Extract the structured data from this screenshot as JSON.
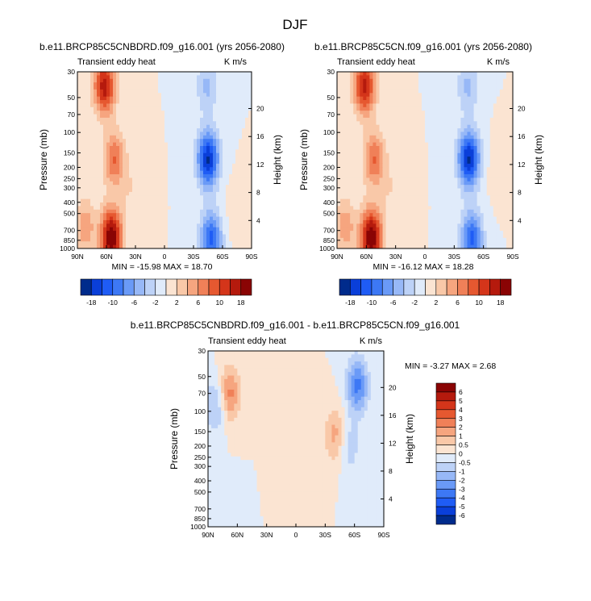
{
  "page_title": "DJF",
  "colorscale_top": {
    "labels": [
      "-18",
      "-10",
      "-6",
      "-2",
      "2",
      "6",
      "10",
      "18"
    ],
    "colors": [
      "#002b8c",
      "#0a3fd9",
      "#1f5cf5",
      "#3d78f5",
      "#6a9af7",
      "#97b8f7",
      "#bdd2f7",
      "#e0ebfa",
      "#fbe4d2",
      "#f9c8a8",
      "#f6a57f",
      "#f08058",
      "#e65830",
      "#d4351a",
      "#b51a0d",
      "#8a0404"
    ]
  },
  "colorscale_diff": {
    "labels": [
      "6",
      "5",
      "4",
      "3",
      "2",
      "1",
      "0.5",
      "0",
      "-0.5",
      "-1",
      "-2",
      "-3",
      "-4",
      "-5",
      "-6"
    ],
    "colors": [
      "#8a0404",
      "#b51a0d",
      "#d4351a",
      "#e65830",
      "#f08058",
      "#f6a57f",
      "#f9c8a8",
      "#fbe4d2",
      "#e0ebfa",
      "#bdd2f7",
      "#97b8f7",
      "#6a9af7",
      "#3d78f5",
      "#1f5cf5",
      "#0a3fd9",
      "#002b8c"
    ]
  },
  "chart_data": [
    {
      "type": "heatmap",
      "title": "b.e11.BRCP85C5CNBDRD.f09_g16.001 (yrs 2056-2080)",
      "left_string": "Transient eddy heat",
      "right_string": "K m/s",
      "ylabel": "Pressure (mb)",
      "ylabel_right": "Height (km)",
      "xticks": [
        "90N",
        "60N",
        "30N",
        "0",
        "30S",
        "60S",
        "90S"
      ],
      "yticks_pressure": [
        30,
        50,
        70,
        100,
        150,
        200,
        250,
        300,
        400,
        500,
        700,
        850,
        1000
      ],
      "yticks_height": [
        20,
        16,
        12,
        8,
        4
      ],
      "stats": "MIN = -15.98  MAX = 18.70",
      "scale": 18,
      "features": [
        {
          "lat": 62,
          "p": 40,
          "amp": 15
        },
        {
          "lat": 55,
          "p": 800,
          "amp": 18.7
        },
        {
          "lat": 52,
          "p": 170,
          "amp": 9
        },
        {
          "lat": 82,
          "p": 650,
          "amp": 6
        },
        {
          "lat": 35,
          "p": 300,
          "amp": 2
        },
        {
          "lat": -45,
          "p": 170,
          "amp": -16
        },
        {
          "lat": -48,
          "p": 830,
          "amp": -12
        },
        {
          "lat": -44,
          "p": 40,
          "amp": -5
        },
        {
          "lat": -75,
          "p": 500,
          "amp": 1.5
        }
      ]
    },
    {
      "type": "heatmap",
      "title": "b.e11.BRCP85C5CN.f09_g16.001 (yrs 2056-2080)",
      "left_string": "Transient eddy heat",
      "right_string": "K m/s",
      "ylabel": "Pressure (mb)",
      "ylabel_right": "Height (km)",
      "xticks": [
        "90N",
        "60N",
        "30N",
        "0",
        "30S",
        "60S",
        "90S"
      ],
      "yticks_pressure": [
        30,
        50,
        70,
        100,
        150,
        200,
        250,
        300,
        400,
        500,
        700,
        850,
        1000
      ],
      "yticks_height": [
        20,
        16,
        12,
        8,
        4
      ],
      "stats": "MIN = -16.12  MAX = 18.28",
      "scale": 18,
      "features": [
        {
          "lat": 62,
          "p": 40,
          "amp": 14.5
        },
        {
          "lat": 55,
          "p": 800,
          "amp": 18.3
        },
        {
          "lat": 52,
          "p": 170,
          "amp": 9
        },
        {
          "lat": 82,
          "p": 650,
          "amp": 6
        },
        {
          "lat": 35,
          "p": 300,
          "amp": 2
        },
        {
          "lat": -45,
          "p": 170,
          "amp": -16.1
        },
        {
          "lat": -48,
          "p": 830,
          "amp": -12
        },
        {
          "lat": -44,
          "p": 40,
          "amp": -5
        },
        {
          "lat": -75,
          "p": 200,
          "amp": 1.2
        }
      ]
    },
    {
      "type": "heatmap",
      "title": "b.e11.BRCP85C5CNBDRD.f09_g16.001 - b.e11.BRCP85C5CN.f09_g16.001",
      "left_string": "Transient eddy heat",
      "right_string": "K m/s",
      "ylabel": "Pressure (mb)",
      "ylabel_right": "Height (km)",
      "xticks": [
        "90N",
        "60N",
        "30N",
        "0",
        "30S",
        "60S",
        "90S"
      ],
      "yticks_pressure": [
        30,
        50,
        70,
        100,
        150,
        200,
        250,
        300,
        400,
        500,
        700,
        850,
        1000
      ],
      "yticks_height": [
        20,
        16,
        12,
        8,
        4
      ],
      "stats": "MIN = -3.27  MAX =  2.68",
      "scale": 6,
      "features": [
        {
          "lat": 68,
          "p": 70,
          "amp": 2.6
        },
        {
          "lat": 82,
          "p": 90,
          "amp": -1.8
        },
        {
          "lat": -40,
          "p": 160,
          "amp": 1.8
        },
        {
          "lat": -63,
          "p": 60,
          "amp": -3.2
        },
        {
          "lat": -55,
          "p": 200,
          "amp": -1.2
        },
        {
          "lat": 10,
          "p": 250,
          "amp": 0.4
        },
        {
          "lat": 70,
          "p": 750,
          "amp": -0.7
        }
      ]
    }
  ]
}
